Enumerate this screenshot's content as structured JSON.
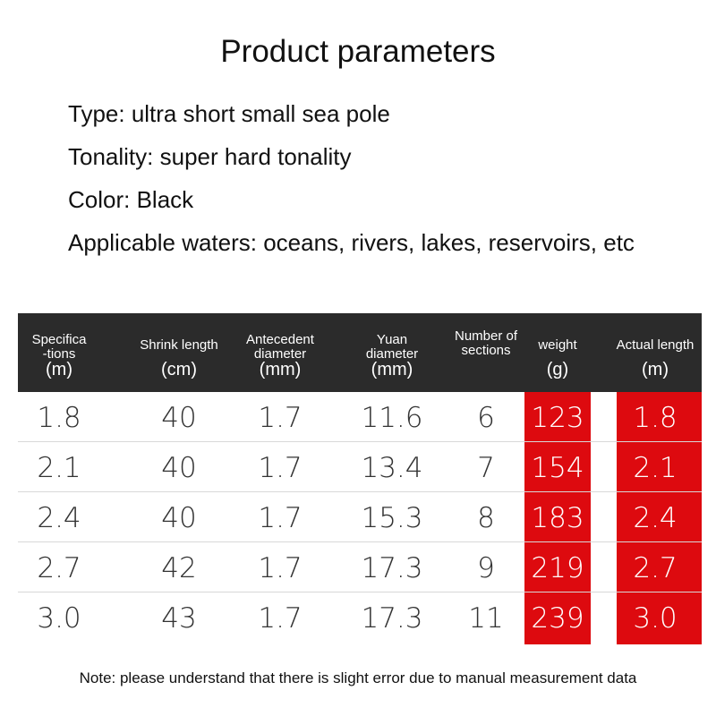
{
  "title": "Product parameters",
  "specs": [
    "Type: ultra short small sea pole",
    "Tonality: super hard tonality",
    "Color: Black",
    "Applicable waters: oceans, rivers, lakes, reservoirs, etc"
  ],
  "table": {
    "headers": [
      {
        "label_lines": [
          "Specifica",
          "-tions"
        ],
        "unit": "(m)"
      },
      {
        "label_lines": [
          "Shrink length"
        ],
        "unit": "(cm)"
      },
      {
        "label_lines": [
          "Antecedent",
          "diameter"
        ],
        "unit": "(mm)"
      },
      {
        "label_lines": [
          "Yuan",
          "diameter"
        ],
        "unit": "(mm)"
      },
      {
        "label_lines": [
          "Number of",
          "sections"
        ],
        "unit": ""
      },
      {
        "label_lines": [
          "weight"
        ],
        "unit": "(g)"
      },
      {
        "label_lines": [
          "Actual length"
        ],
        "unit": "(m)"
      }
    ],
    "rows": [
      [
        "1.8",
        "40",
        "1.7",
        "11.6",
        "6",
        "123",
        "1.8"
      ],
      [
        "2.1",
        "40",
        "1.7",
        "13.4",
        "7",
        "154",
        "2.1"
      ],
      [
        "2.4",
        "40",
        "1.7",
        "15.3",
        "8",
        "183",
        "2.4"
      ],
      [
        "2.7",
        "42",
        "1.7",
        "17.3",
        "9",
        "219",
        "2.7"
      ],
      [
        "3.0",
        "43",
        "1.7",
        "17.3",
        "11",
        "239",
        "3.0"
      ]
    ],
    "highlight_color": "#dd0a0f",
    "header_bg": "#2b2b2b"
  },
  "note": "Note: please understand that there is slight error due to manual measurement data"
}
